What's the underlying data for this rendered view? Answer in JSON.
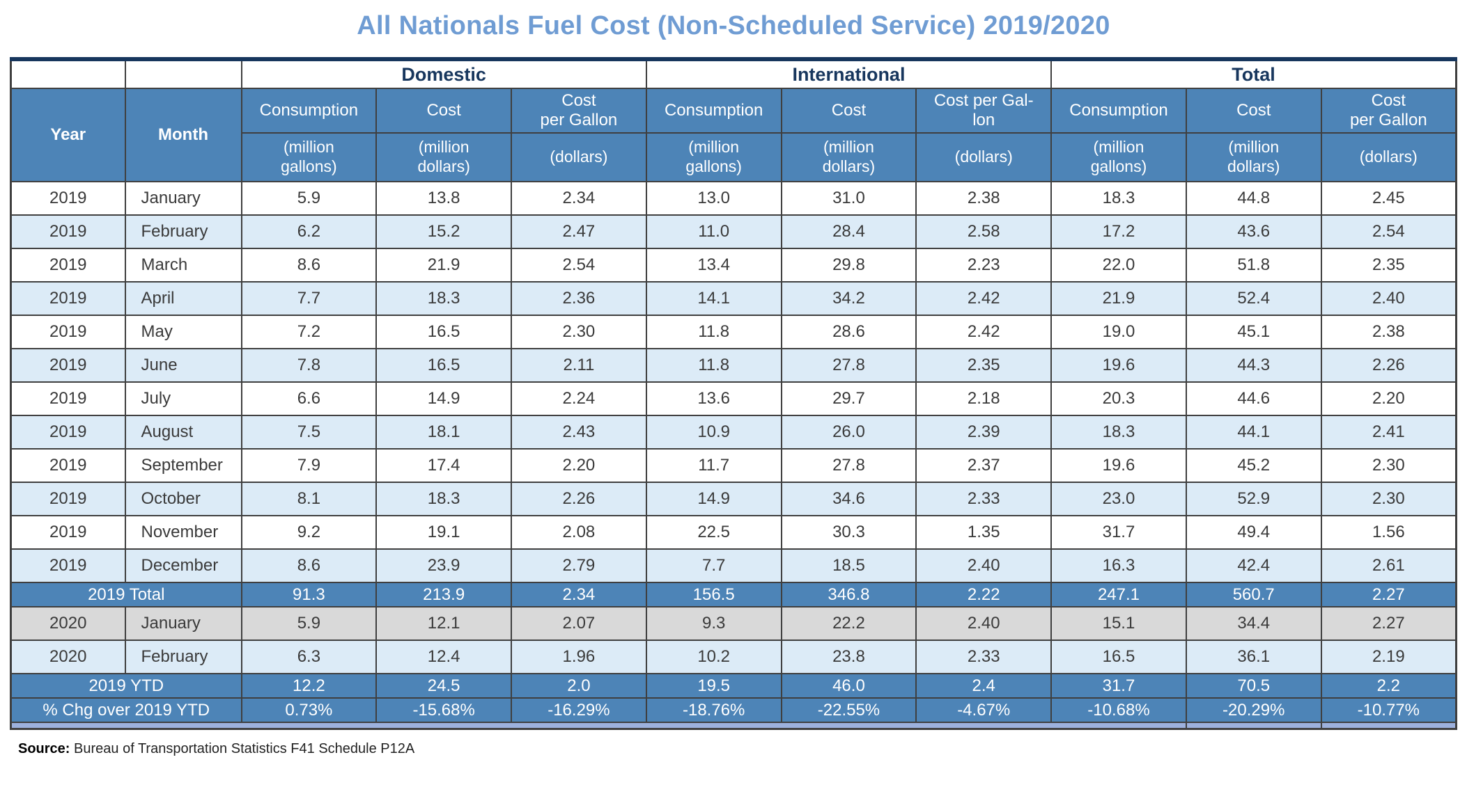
{
  "colors": {
    "header_blue": "#4d84b7",
    "navy": "#17365d",
    "light_row": "#dcebf7",
    "gray_row": "#d9d9d9",
    "footer_bar": "#9db1dd",
    "title_blue": "#6f9cd3",
    "border": "#3f3f3f",
    "text": "#3a3a3a"
  },
  "chart_data": {
    "type": "table",
    "title": "All Nationals Fuel Cost (Non-Scheduled Service) 2019/2020",
    "groups": [
      "Domestic",
      "International",
      "Total"
    ],
    "year_header": "Year",
    "month_header": "Month",
    "metric_headers": [
      "Consumption",
      "Cost",
      "Cost\nper Gallon",
      "Consumption",
      "Cost",
      "Cost per Gal-\nlon",
      "Consumption",
      "Cost",
      "Cost\nper Gallon"
    ],
    "unit_headers": [
      "(million\ngallons)",
      "(million\ndollars)",
      "(dollars)",
      "(million\ngallons)",
      "(million\ndollars)",
      "(dollars)",
      "(million\ngallons)",
      "(million\ndollars)",
      "(dollars)"
    ],
    "rows": [
      {
        "type": "month",
        "style": "white",
        "year": "2019",
        "month": "January",
        "values": [
          "5.9",
          "13.8",
          "2.34",
          "13.0",
          "31.0",
          "2.38",
          "18.3",
          "44.8",
          "2.45"
        ]
      },
      {
        "type": "month",
        "style": "light",
        "year": "2019",
        "month": "February",
        "values": [
          "6.2",
          "15.2",
          "2.47",
          "11.0",
          "28.4",
          "2.58",
          "17.2",
          "43.6",
          "2.54"
        ]
      },
      {
        "type": "month",
        "style": "white",
        "year": "2019",
        "month": "March",
        "values": [
          "8.6",
          "21.9",
          "2.54",
          "13.4",
          "29.8",
          "2.23",
          "22.0",
          "51.8",
          "2.35"
        ]
      },
      {
        "type": "month",
        "style": "light",
        "year": "2019",
        "month": "April",
        "values": [
          "7.7",
          "18.3",
          "2.36",
          "14.1",
          "34.2",
          "2.42",
          "21.9",
          "52.4",
          "2.40"
        ]
      },
      {
        "type": "month",
        "style": "white",
        "year": "2019",
        "month": "May",
        "values": [
          "7.2",
          "16.5",
          "2.30",
          "11.8",
          "28.6",
          "2.42",
          "19.0",
          "45.1",
          "2.38"
        ]
      },
      {
        "type": "month",
        "style": "light",
        "year": "2019",
        "month": "June",
        "values": [
          "7.8",
          "16.5",
          "2.11",
          "11.8",
          "27.8",
          "2.35",
          "19.6",
          "44.3",
          "2.26"
        ]
      },
      {
        "type": "month",
        "style": "white",
        "year": "2019",
        "month": "July",
        "values": [
          "6.6",
          "14.9",
          "2.24",
          "13.6",
          "29.7",
          "2.18",
          "20.3",
          "44.6",
          "2.20"
        ]
      },
      {
        "type": "month",
        "style": "light",
        "year": "2019",
        "month": "August",
        "values": [
          "7.5",
          "18.1",
          "2.43",
          "10.9",
          "26.0",
          "2.39",
          "18.3",
          "44.1",
          "2.41"
        ]
      },
      {
        "type": "month",
        "style": "white",
        "year": "2019",
        "month": "September",
        "values": [
          "7.9",
          "17.4",
          "2.20",
          "11.7",
          "27.8",
          "2.37",
          "19.6",
          "45.2",
          "2.30"
        ]
      },
      {
        "type": "month",
        "style": "light",
        "year": "2019",
        "month": "October",
        "values": [
          "8.1",
          "18.3",
          "2.26",
          "14.9",
          "34.6",
          "2.33",
          "23.0",
          "52.9",
          "2.30"
        ]
      },
      {
        "type": "month",
        "style": "white",
        "year": "2019",
        "month": "November",
        "values": [
          "9.2",
          "19.1",
          "2.08",
          "22.5",
          "30.3",
          "1.35",
          "31.7",
          "49.4",
          "1.56"
        ]
      },
      {
        "type": "month",
        "style": "light",
        "year": "2019",
        "month": "December",
        "values": [
          "8.6",
          "23.9",
          "2.79",
          "7.7",
          "18.5",
          "2.40",
          "16.3",
          "42.4",
          "2.61"
        ]
      },
      {
        "type": "summary",
        "style": "blue",
        "label": "2019 Total",
        "values": [
          "91.3",
          "213.9",
          "2.34",
          "156.5",
          "346.8",
          "2.22",
          "247.1",
          "560.7",
          "2.27"
        ]
      },
      {
        "type": "month",
        "style": "gray",
        "year": "2020",
        "month": "January",
        "values": [
          "5.9",
          "12.1",
          "2.07",
          "9.3",
          "22.2",
          "2.40",
          "15.1",
          "34.4",
          "2.27"
        ]
      },
      {
        "type": "month",
        "style": "light",
        "year": "2020",
        "month": "February",
        "values": [
          "6.3",
          "12.4",
          "1.96",
          "10.2",
          "23.8",
          "2.33",
          "16.5",
          "36.1",
          "2.19"
        ]
      },
      {
        "type": "summary",
        "style": "blue",
        "label": "2019 YTD",
        "values": [
          "12.2",
          "24.5",
          "2.0",
          "19.5",
          "46.0",
          "2.4",
          "31.7",
          "70.5",
          "2.2"
        ]
      },
      {
        "type": "summary",
        "style": "blue",
        "label": "% Chg over 2019 YTD",
        "values": [
          "0.73%",
          "-15.68%",
          "-16.29%",
          "-18.76%",
          "-22.55%",
          "-4.67%",
          "-10.68%",
          "-20.29%",
          "-10.77%"
        ]
      }
    ],
    "source_label": "Source:",
    "source_text": "Bureau of Transportation Statistics F41 Schedule P12A"
  }
}
